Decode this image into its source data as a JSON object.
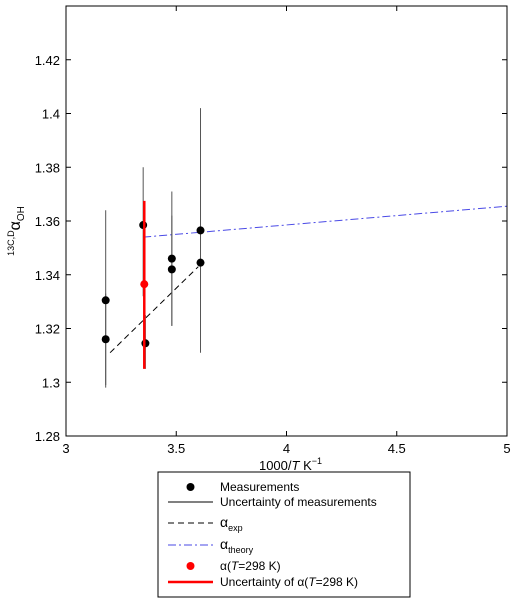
{
  "chart_data": {
    "type": "scatter",
    "xlabel": "1000/T K⁻¹",
    "ylabel": "13C,DαOH",
    "xlim": [
      3,
      5
    ],
    "ylim": [
      1.28,
      1.44
    ],
    "x_ticks": [
      "3",
      "3.5",
      "4",
      "4.5",
      "5"
    ],
    "y_ticks": [
      "1.28",
      "1.3",
      "1.32",
      "1.34",
      "1.36",
      "1.38",
      "1.4",
      "1.42"
    ],
    "x_tick_values": [
      3,
      3.5,
      4,
      4.5,
      5
    ],
    "y_tick_values": [
      1.28,
      1.3,
      1.32,
      1.34,
      1.36,
      1.38,
      1.4,
      1.42
    ],
    "grid": false,
    "legend_position": "below",
    "series": [
      {
        "name": "Measurements",
        "kind": "points_with_error_bars",
        "color": "#000000",
        "points": [
          {
            "x": 3.18,
            "y": 1.3305,
            "low": 1.299,
            "high": 1.364
          },
          {
            "x": 3.18,
            "y": 1.316,
            "low": 1.298,
            "high": 1.333
          },
          {
            "x": 3.35,
            "y": 1.3585,
            "low": 1.332,
            "high": 1.38
          },
          {
            "x": 3.36,
            "y": 1.3145,
            "low": 1.305,
            "high": 1.325
          },
          {
            "x": 3.48,
            "y": 1.346,
            "low": 1.321,
            "high": 1.371
          },
          {
            "x": 3.48,
            "y": 1.342,
            "low": 1.321,
            "high": 1.362
          },
          {
            "x": 3.61,
            "y": 1.3565,
            "low": 1.331,
            "high": 1.402
          },
          {
            "x": 3.61,
            "y": 1.3445,
            "low": 1.311,
            "high": 1.378
          }
        ]
      },
      {
        "name": "αexp",
        "kind": "line",
        "style": "dashed",
        "color": "#000000",
        "x": [
          3.2,
          3.6
        ],
        "y": [
          1.311,
          1.343
        ]
      },
      {
        "name": "αtheory",
        "kind": "line",
        "style": "dashdot",
        "color": "#4a4ae6",
        "x": [
          3.35,
          5.0
        ],
        "y": [
          1.354,
          1.3655
        ]
      },
      {
        "name": "α(T=298 K)",
        "kind": "point_with_error_bar",
        "color": "#ff0000",
        "points": [
          {
            "x": 3.355,
            "y": 1.3365,
            "low": 1.305,
            "high": 1.3675
          }
        ]
      }
    ],
    "legend": {
      "entries": [
        {
          "id": "measurements",
          "label": "Measurements"
        },
        {
          "id": "uncertainty",
          "label": "Uncertainty of measurements"
        },
        {
          "id": "alpha-exp",
          "symbol": "α",
          "sub": "exp"
        },
        {
          "id": "alpha-theory",
          "symbol": "α",
          "sub": "theory"
        },
        {
          "id": "alpha-298",
          "pre": "α(",
          "italic": "T",
          "post": "=298 K)"
        },
        {
          "id": "alpha-298-uncertainty",
          "pre": "Uncertainty of  α(",
          "italic": "T",
          "post": "=298 K)"
        }
      ]
    },
    "xlabel_parts": {
      "pre": "1000/",
      "italic": "T",
      "post": " K",
      "sup": "−1"
    },
    "ylabel_parts": {
      "sup": "13C,D",
      "main": "α",
      "sub": "OH"
    }
  }
}
